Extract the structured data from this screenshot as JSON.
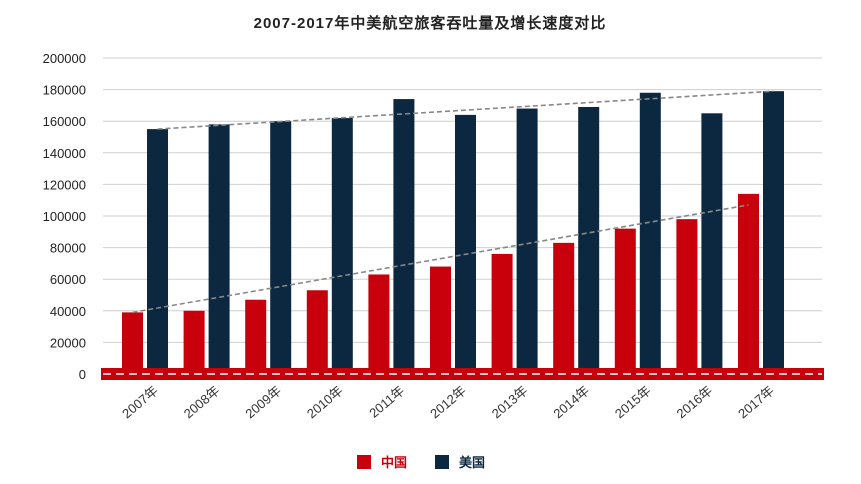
{
  "colors": {
    "china": "#c8000c",
    "usa": "#0b2840",
    "grid": "#cfcfcf",
    "trend": "#888888",
    "baseline": "#c8000c"
  },
  "chart_data": {
    "type": "bar",
    "title": "2007-2017年中美航空旅客吞吐量及增长速度对比",
    "categories": [
      "2007年",
      "2008年",
      "2009年",
      "2010年",
      "2011年",
      "2012年",
      "2013年",
      "2014年",
      "2015年",
      "2016年",
      "2017年"
    ],
    "series": [
      {
        "name": "中国",
        "color": "#c8000c",
        "values": [
          39000,
          40000,
          47000,
          53000,
          63000,
          68000,
          76000,
          83000,
          92000,
          98000,
          114000
        ]
      },
      {
        "name": "美国",
        "color": "#0b2840",
        "values": [
          155000,
          158000,
          160000,
          162000,
          174000,
          164000,
          168000,
          169000,
          178000,
          165000,
          179000
        ]
      }
    ],
    "trendlines": [
      {
        "series": "中国",
        "start": 39000,
        "end": 107000
      },
      {
        "series": "美国",
        "start": 155000,
        "end": 179000
      }
    ],
    "yticks": [
      0,
      20000,
      40000,
      60000,
      80000,
      100000,
      120000,
      140000,
      160000,
      180000,
      200000
    ],
    "ylim": [
      0,
      200000
    ],
    "xlabel": "",
    "ylabel": "",
    "legend": "bottom-center",
    "grid": true
  }
}
